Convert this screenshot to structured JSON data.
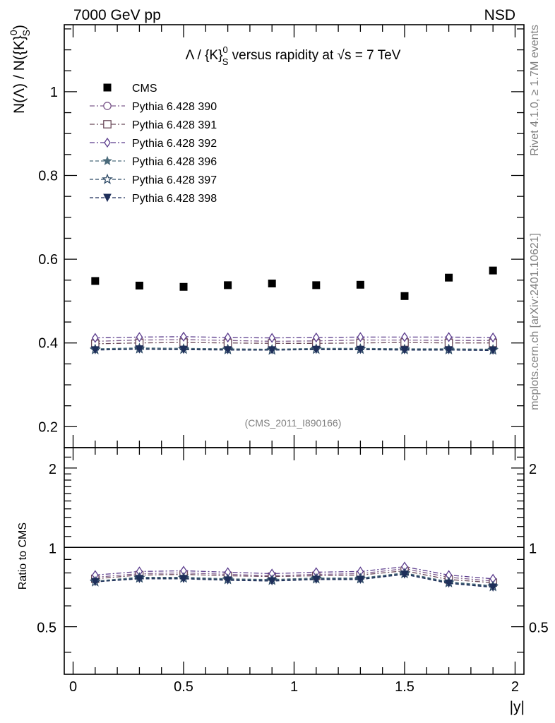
{
  "header": {
    "left": "7000 GeV pp",
    "right": "NSD"
  },
  "side_labels": {
    "top": "Rivet 4.1.0, ≥ 1.7M events",
    "bottom": "mcplots.cern.ch [arXiv:2401.10621]"
  },
  "chart_data": {
    "type": "scatter",
    "title": "Λ / {K}S0 versus rapidity at √s = 7 TeV",
    "title_parts": {
      "a": "Λ / {K}",
      "sup": "0",
      "sub": "S",
      "b": " versus rapidity at ",
      "sqrt": "√",
      "c": "s = 7 TeV"
    },
    "ylabel": "N(Λ)  /  N({K}S0)",
    "ylabel_parts": {
      "a": "N(Λ)  /  N({K}",
      "sup": "0",
      "sub": "S",
      "b": ")"
    },
    "ratio_ylabel": "Ratio to CMS",
    "xlabel": "|y|",
    "analysis_tag": "(CMS_2011_I890166)",
    "x": [
      0.1,
      0.3,
      0.5,
      0.7,
      0.9,
      1.1,
      1.3,
      1.5,
      1.7,
      1.9
    ],
    "xlim": [
      -0.04,
      2.04
    ],
    "ylim": [
      0.15,
      1.16
    ],
    "ratio_ylim": [
      0.33,
      2.39
    ],
    "xticks": [
      "0",
      "0.5",
      "1",
      "1.5",
      "2"
    ],
    "xtick_values": [
      0,
      0.5,
      1,
      1.5,
      2
    ],
    "yticks": [
      "0.2",
      "0.4",
      "0.6",
      "0.8",
      "1"
    ],
    "ytick_values": [
      0.2,
      0.4,
      0.6,
      0.8,
      1.0
    ],
    "ratio_yticks": [
      "0.5",
      "1",
      "2"
    ],
    "ratio_ytick_values": [
      0.5,
      1,
      2
    ],
    "legend_position": "top-left",
    "series": [
      {
        "name": "CMS",
        "marker": "square-filled",
        "color": "#000000",
        "values": [
          0.548,
          0.537,
          0.534,
          0.538,
          0.542,
          0.538,
          0.539,
          0.512,
          0.556,
          0.573
        ]
      },
      {
        "name": "Pythia 6.428 390",
        "marker": "circle-open",
        "line": "dashdot",
        "color": "#7d5a8c",
        "values": [
          0.404,
          0.407,
          0.408,
          0.406,
          0.404,
          0.405,
          0.407,
          0.407,
          0.406,
          0.406
        ],
        "ratio": [
          0.77,
          0.795,
          0.8,
          0.79,
          0.78,
          0.79,
          0.795,
          0.83,
          0.77,
          0.745
        ]
      },
      {
        "name": "Pythia 6.428 391",
        "marker": "square-open",
        "line": "dashdot",
        "color": "#6b4a5a",
        "values": [
          0.398,
          0.4,
          0.401,
          0.4,
          0.399,
          0.399,
          0.4,
          0.401,
          0.4,
          0.4
        ],
        "ratio": [
          0.76,
          0.785,
          0.79,
          0.78,
          0.775,
          0.78,
          0.785,
          0.815,
          0.755,
          0.735
        ]
      },
      {
        "name": "Pythia 6.428 392",
        "marker": "diamond-open",
        "line": "dashdot",
        "color": "#5a3b8c",
        "values": [
          0.412,
          0.414,
          0.415,
          0.413,
          0.412,
          0.413,
          0.414,
          0.414,
          0.414,
          0.413
        ],
        "ratio": [
          0.785,
          0.81,
          0.815,
          0.805,
          0.795,
          0.805,
          0.81,
          0.845,
          0.785,
          0.76
        ]
      },
      {
        "name": "Pythia 6.428 396",
        "marker": "star-filled",
        "line": "dashed",
        "color": "#4a6a7a",
        "values": [
          0.386,
          0.388,
          0.387,
          0.386,
          0.385,
          0.387,
          0.387,
          0.386,
          0.386,
          0.385
        ],
        "ratio": [
          0.745,
          0.77,
          0.77,
          0.76,
          0.755,
          0.765,
          0.765,
          0.8,
          0.74,
          0.715
        ]
      },
      {
        "name": "Pythia 6.428 397",
        "marker": "star-open",
        "line": "dashed",
        "color": "#2e4a66",
        "values": [
          0.384,
          0.386,
          0.385,
          0.384,
          0.383,
          0.385,
          0.385,
          0.384,
          0.384,
          0.383
        ],
        "ratio": [
          0.74,
          0.765,
          0.765,
          0.755,
          0.75,
          0.76,
          0.76,
          0.795,
          0.735,
          0.71
        ]
      },
      {
        "name": "Pythia 6.428 398",
        "marker": "triangle-down-filled",
        "line": "dashed",
        "color": "#1e2f5a",
        "values": [
          0.383,
          0.385,
          0.384,
          0.383,
          0.383,
          0.384,
          0.384,
          0.383,
          0.383,
          0.382
        ],
        "ratio": [
          0.74,
          0.76,
          0.76,
          0.75,
          0.745,
          0.755,
          0.755,
          0.79,
          0.73,
          0.705
        ]
      }
    ]
  }
}
